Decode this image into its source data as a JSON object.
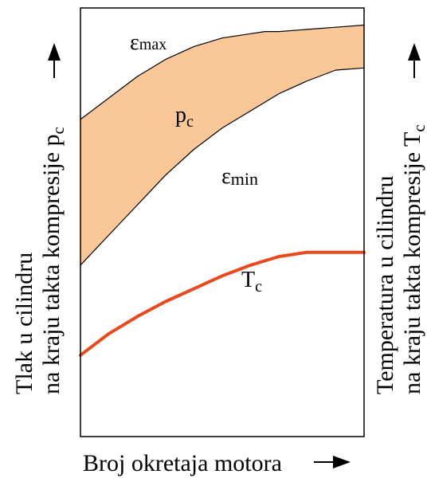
{
  "chart_data": {
    "type": "area",
    "title": "",
    "xlabel": "Broj okretaja motora",
    "ylabel_left": [
      "Tlak u cilindru",
      "na kraju takta kompresije p",
      "c"
    ],
    "ylabel_right": [
      "Temperatura u cilindru",
      "na kraju takta kompresije T",
      "c"
    ],
    "grid": false,
    "xlim": [
      0,
      1
    ],
    "ylim": [
      0,
      1
    ],
    "band": {
      "name": "p_c",
      "label_main": "p",
      "label_sub": "c",
      "fill_color": "#fac898",
      "upper": {
        "name": "ε_max",
        "label_main": "ε",
        "label_sub": "max",
        "x": [
          0.0,
          0.1,
          0.2,
          0.3,
          0.4,
          0.5,
          0.6,
          0.65,
          0.7,
          0.8,
          0.9,
          1.0
        ],
        "y": [
          0.74,
          0.79,
          0.84,
          0.88,
          0.91,
          0.93,
          0.94,
          0.945,
          0.945,
          0.95,
          0.955,
          0.96
        ]
      },
      "lower": {
        "name": "ε_min",
        "label_main": "ε",
        "label_sub": "min",
        "x": [
          0.0,
          0.1,
          0.2,
          0.3,
          0.4,
          0.5,
          0.6,
          0.7,
          0.8,
          0.9,
          1.0
        ],
        "y": [
          0.4,
          0.47,
          0.54,
          0.61,
          0.67,
          0.72,
          0.76,
          0.8,
          0.83,
          0.855,
          0.86
        ]
      }
    },
    "temperature": {
      "name": "T_c",
      "label_main": "T",
      "label_sub": "c",
      "color": "#e8491d",
      "x": [
        0.0,
        0.1,
        0.2,
        0.3,
        0.4,
        0.5,
        0.6,
        0.7,
        0.8,
        0.9,
        1.0
      ],
      "y": [
        0.19,
        0.24,
        0.28,
        0.315,
        0.345,
        0.375,
        0.4,
        0.42,
        0.43,
        0.43,
        0.43
      ]
    }
  }
}
